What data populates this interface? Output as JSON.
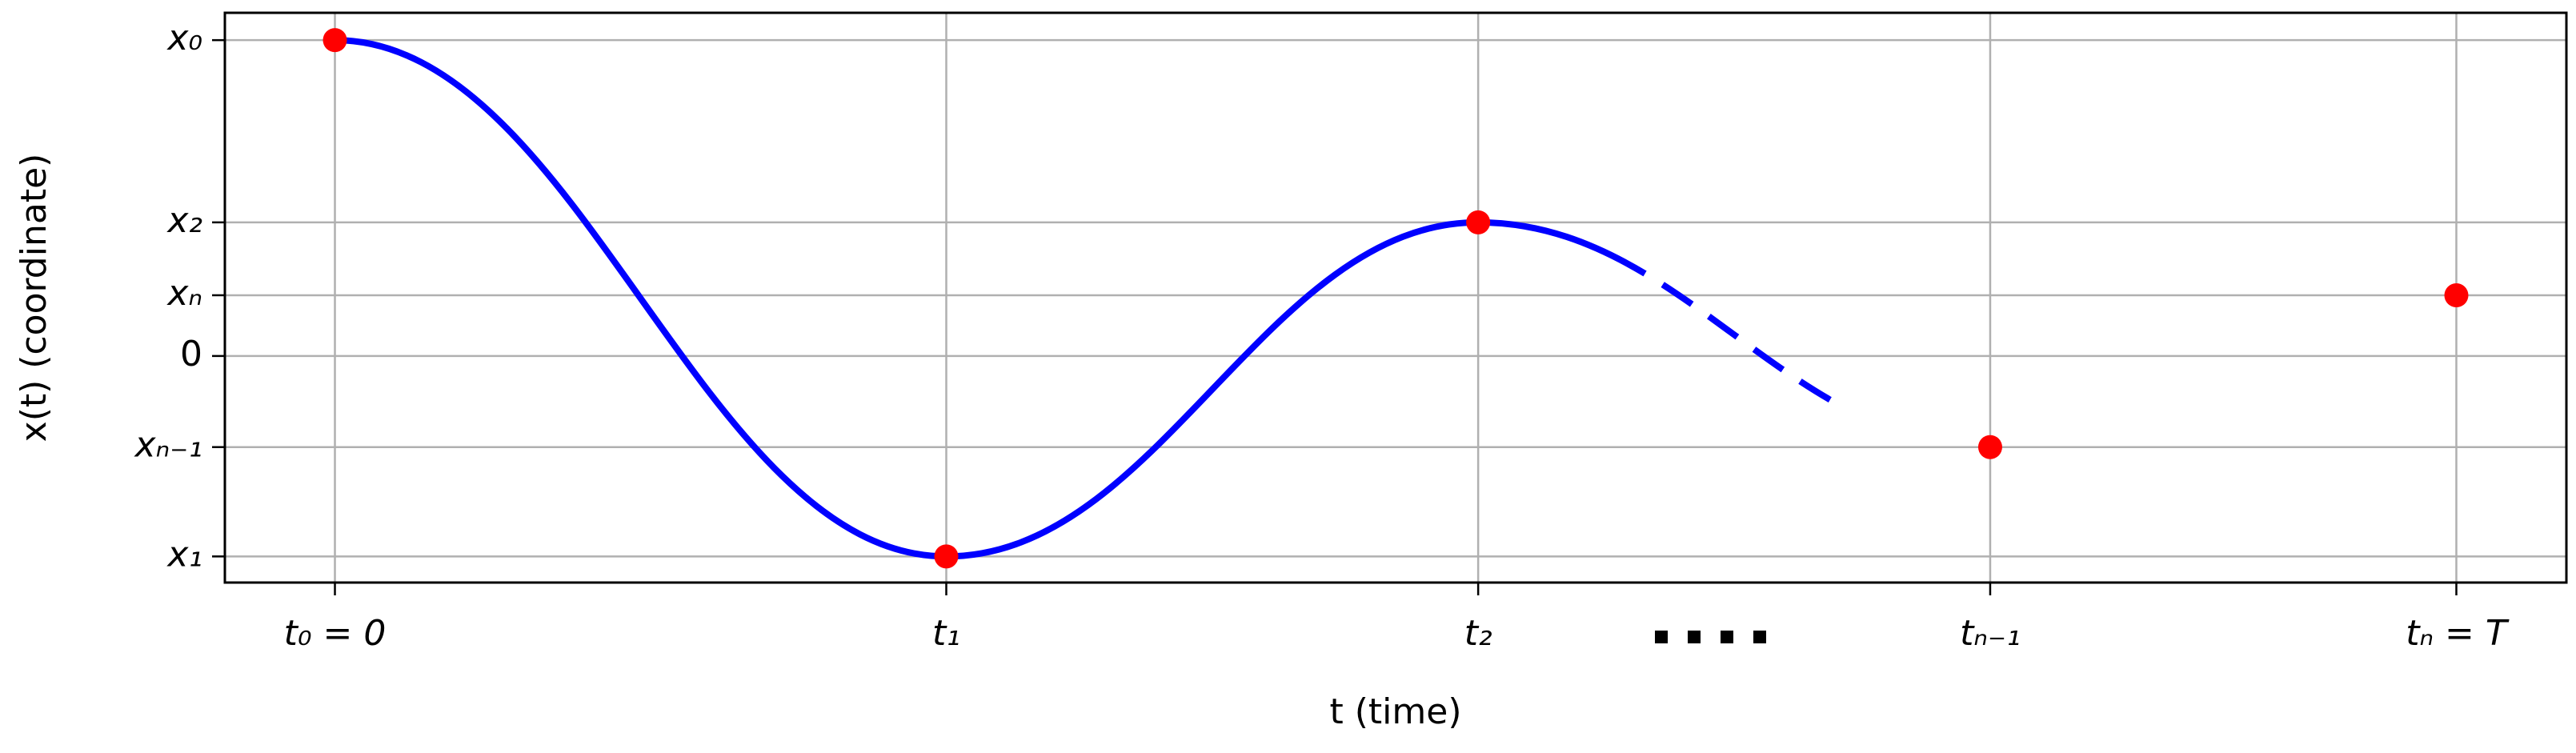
{
  "chart_data": {
    "type": "line",
    "xlabel": "t (time)",
    "ylabel": "x(t) (coordinate)",
    "x": [
      0,
      4,
      7.48,
      10.83,
      13.88
    ],
    "values": [
      5.2,
      -3.3,
      2.2,
      -1.5,
      1
    ],
    "color": "#0000ff",
    "marker_color": "#ff0000",
    "xlim": [
      -0.72,
      14.6
    ],
    "xticks": [
      {
        "value": 0,
        "label": "t₀ = 0"
      },
      {
        "value": 4,
        "label": "t₁"
      },
      {
        "value": 7.48,
        "label": "t₂"
      },
      {
        "value": 10.83,
        "label": "tₙ₋₁"
      },
      {
        "value": 13.88,
        "label": "tₙ = T"
      }
    ],
    "ylim": [
      -3.73,
      5.65
    ],
    "yticks": [
      {
        "value": 5.2,
        "label": "x₀"
      },
      {
        "value": 2.2,
        "label": "x₂"
      },
      {
        "value": 1,
        "label": "xₙ"
      },
      0,
      {
        "value": -1.5,
        "label": "xₙ₋₁"
      },
      {
        "value": -3.3,
        "label": "x₁"
      }
    ],
    "grid": true
  }
}
